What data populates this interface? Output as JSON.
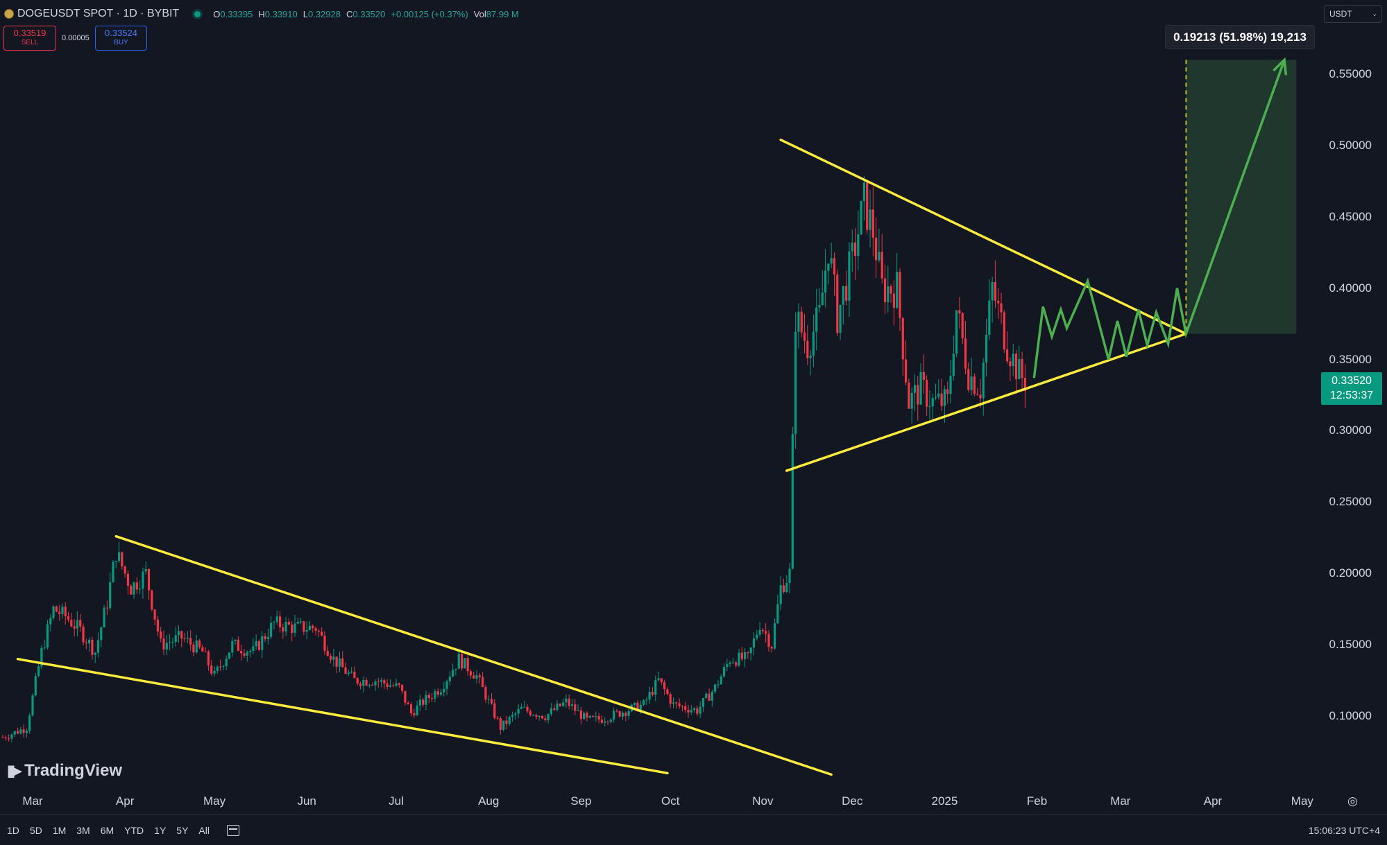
{
  "header": {
    "symbol": "DOGEUSDT SPOT · 1D · BYBIT",
    "ohlc": {
      "o_label": "O",
      "o_value": "0.33395",
      "h_label": "H",
      "h_value": "0.33910",
      "l_label": "L",
      "l_value": "0.32928",
      "c_label": "C",
      "c_value": "0.33520",
      "change": "+0.00125 (+0.37%)",
      "vol_label": "Vol",
      "vol_value": "87.99 M"
    },
    "sell": {
      "price": "0.33519",
      "label": "SELL"
    },
    "buy": {
      "price": "0.33524",
      "label": "BUY"
    },
    "spread": "0.00005",
    "currency": "USDT"
  },
  "measure_label": "0.19213 (51.98%) 19,213",
  "last_price": {
    "price": "0.33520",
    "countdown": "12:53:37"
  },
  "brand": "TradingView",
  "timeframes": [
    "1D",
    "5D",
    "1M",
    "3M",
    "6M",
    "YTD",
    "1Y",
    "5Y",
    "All"
  ],
  "clock": "15:06:23 UTC+4",
  "colors": {
    "up": "#089981",
    "down": "#f23645",
    "trendline": "#ffeb3b",
    "projection": "#4caf50",
    "background": "#131722"
  },
  "chart_data": {
    "type": "candlestick",
    "title": "DOGEUSDT SPOT · 1D · BYBIT",
    "y_ticks": [
      "0.55000",
      "0.50000",
      "0.45000",
      "0.40000",
      "0.35000",
      "0.30000",
      "0.25000",
      "0.20000",
      "0.15000",
      "0.10000"
    ],
    "x_ticks": [
      {
        "label": "Mar",
        "date": "2024-03-01"
      },
      {
        "label": "Apr",
        "date": "2024-04-01"
      },
      {
        "label": "May",
        "date": "2024-05-01"
      },
      {
        "label": "Jun",
        "date": "2024-06-01"
      },
      {
        "label": "Jul",
        "date": "2024-07-01"
      },
      {
        "label": "Aug",
        "date": "2024-08-01"
      },
      {
        "label": "Sep",
        "date": "2024-09-01"
      },
      {
        "label": "Oct",
        "date": "2024-10-01"
      },
      {
        "label": "Nov",
        "date": "2024-11-01"
      },
      {
        "label": "Dec",
        "date": "2024-12-01"
      },
      {
        "label": "2025",
        "date": "2025-01-01"
      },
      {
        "label": "Feb",
        "date": "2025-02-01"
      },
      {
        "label": "Mar",
        "date": "2025-03-01"
      },
      {
        "label": "Apr",
        "date": "2025-04-01"
      },
      {
        "label": "May",
        "date": "2025-05-01"
      }
    ],
    "series_close": [
      [
        "2024-02-20",
        0.085
      ],
      [
        "2024-02-28",
        0.092
      ],
      [
        "2024-03-04",
        0.145
      ],
      [
        "2024-03-08",
        0.175
      ],
      [
        "2024-03-12",
        0.17
      ],
      [
        "2024-03-17",
        0.16
      ],
      [
        "2024-03-22",
        0.145
      ],
      [
        "2024-03-26",
        0.18
      ],
      [
        "2024-03-29",
        0.215
      ],
      [
        "2024-04-03",
        0.19
      ],
      [
        "2024-04-08",
        0.2
      ],
      [
        "2024-04-13",
        0.15
      ],
      [
        "2024-04-20",
        0.155
      ],
      [
        "2024-04-27",
        0.145
      ],
      [
        "2024-05-01",
        0.128
      ],
      [
        "2024-05-07",
        0.15
      ],
      [
        "2024-05-14",
        0.145
      ],
      [
        "2024-05-21",
        0.165
      ],
      [
        "2024-05-28",
        0.162
      ],
      [
        "2024-06-04",
        0.162
      ],
      [
        "2024-06-10",
        0.14
      ],
      [
        "2024-06-17",
        0.125
      ],
      [
        "2024-06-24",
        0.125
      ],
      [
        "2024-07-02",
        0.12
      ],
      [
        "2024-07-06",
        0.102
      ],
      [
        "2024-07-10",
        0.11
      ],
      [
        "2024-07-16",
        0.12
      ],
      [
        "2024-07-22",
        0.14
      ],
      [
        "2024-07-28",
        0.128
      ],
      [
        "2024-08-05",
        0.092
      ],
      [
        "2024-08-12",
        0.105
      ],
      [
        "2024-08-20",
        0.1
      ],
      [
        "2024-08-27",
        0.11
      ],
      [
        "2024-09-03",
        0.097
      ],
      [
        "2024-09-08",
        0.098
      ],
      [
        "2024-09-15",
        0.103
      ],
      [
        "2024-09-22",
        0.108
      ],
      [
        "2024-09-27",
        0.125
      ],
      [
        "2024-10-02",
        0.108
      ],
      [
        "2024-10-10",
        0.104
      ],
      [
        "2024-10-16",
        0.12
      ],
      [
        "2024-10-21",
        0.14
      ],
      [
        "2024-10-27",
        0.14
      ],
      [
        "2024-10-31",
        0.165
      ],
      [
        "2024-11-04",
        0.15
      ],
      [
        "2024-11-07",
        0.19
      ],
      [
        "2024-11-10",
        0.2
      ],
      [
        "2024-11-12",
        0.38
      ],
      [
        "2024-11-16",
        0.36
      ],
      [
        "2024-11-20",
        0.38
      ],
      [
        "2024-11-23",
        0.43
      ],
      [
        "2024-11-26",
        0.38
      ],
      [
        "2024-12-01",
        0.42
      ],
      [
        "2024-12-05",
        0.46
      ],
      [
        "2024-12-08",
        0.44
      ],
      [
        "2024-12-11",
        0.4
      ],
      [
        "2024-12-16",
        0.4
      ],
      [
        "2024-12-20",
        0.32
      ],
      [
        "2024-12-24",
        0.33
      ],
      [
        "2024-12-28",
        0.32
      ],
      [
        "2025-01-02",
        0.32
      ],
      [
        "2025-01-05",
        0.385
      ],
      [
        "2025-01-09",
        0.34
      ],
      [
        "2025-01-13",
        0.33
      ],
      [
        "2025-01-17",
        0.4
      ],
      [
        "2025-01-22",
        0.36
      ],
      [
        "2025-01-26",
        0.34
      ],
      [
        "2025-01-28",
        0.3352
      ]
    ],
    "trendlines": [
      {
        "from": [
          "2024-03-29",
          0.226
        ],
        "to": [
          "2024-11-24",
          0.059
        ]
      },
      {
        "from": [
          "2024-02-25",
          0.14
        ],
        "to": [
          "2024-09-30",
          0.06
        ]
      },
      {
        "from": [
          "2024-11-07",
          0.504
        ],
        "to": [
          "2025-03-23",
          0.368
        ]
      },
      {
        "from": [
          "2024-11-09",
          0.272
        ],
        "to": [
          "2025-03-23",
          0.368
        ]
      }
    ],
    "projection_path": [
      [
        "2025-01-31",
        0.337
      ],
      [
        "2025-02-03",
        0.387
      ],
      [
        "2025-02-06",
        0.366
      ],
      [
        "2025-02-09",
        0.385
      ],
      [
        "2025-02-11",
        0.372
      ],
      [
        "2025-02-18",
        0.405
      ],
      [
        "2025-02-25",
        0.35
      ],
      [
        "2025-02-28",
        0.377
      ],
      [
        "2025-03-03",
        0.352
      ],
      [
        "2025-03-07",
        0.385
      ],
      [
        "2025-03-10",
        0.36
      ],
      [
        "2025-03-13",
        0.383
      ],
      [
        "2025-03-17",
        0.361
      ],
      [
        "2025-03-20",
        0.4
      ],
      [
        "2025-03-23",
        0.368
      ],
      [
        "2025-04-25",
        0.56
      ]
    ],
    "target_box": {
      "x_start": "2025-03-23",
      "x_end": "2025-04-29",
      "y_low": 0.368,
      "y_high": 0.5601
    }
  }
}
